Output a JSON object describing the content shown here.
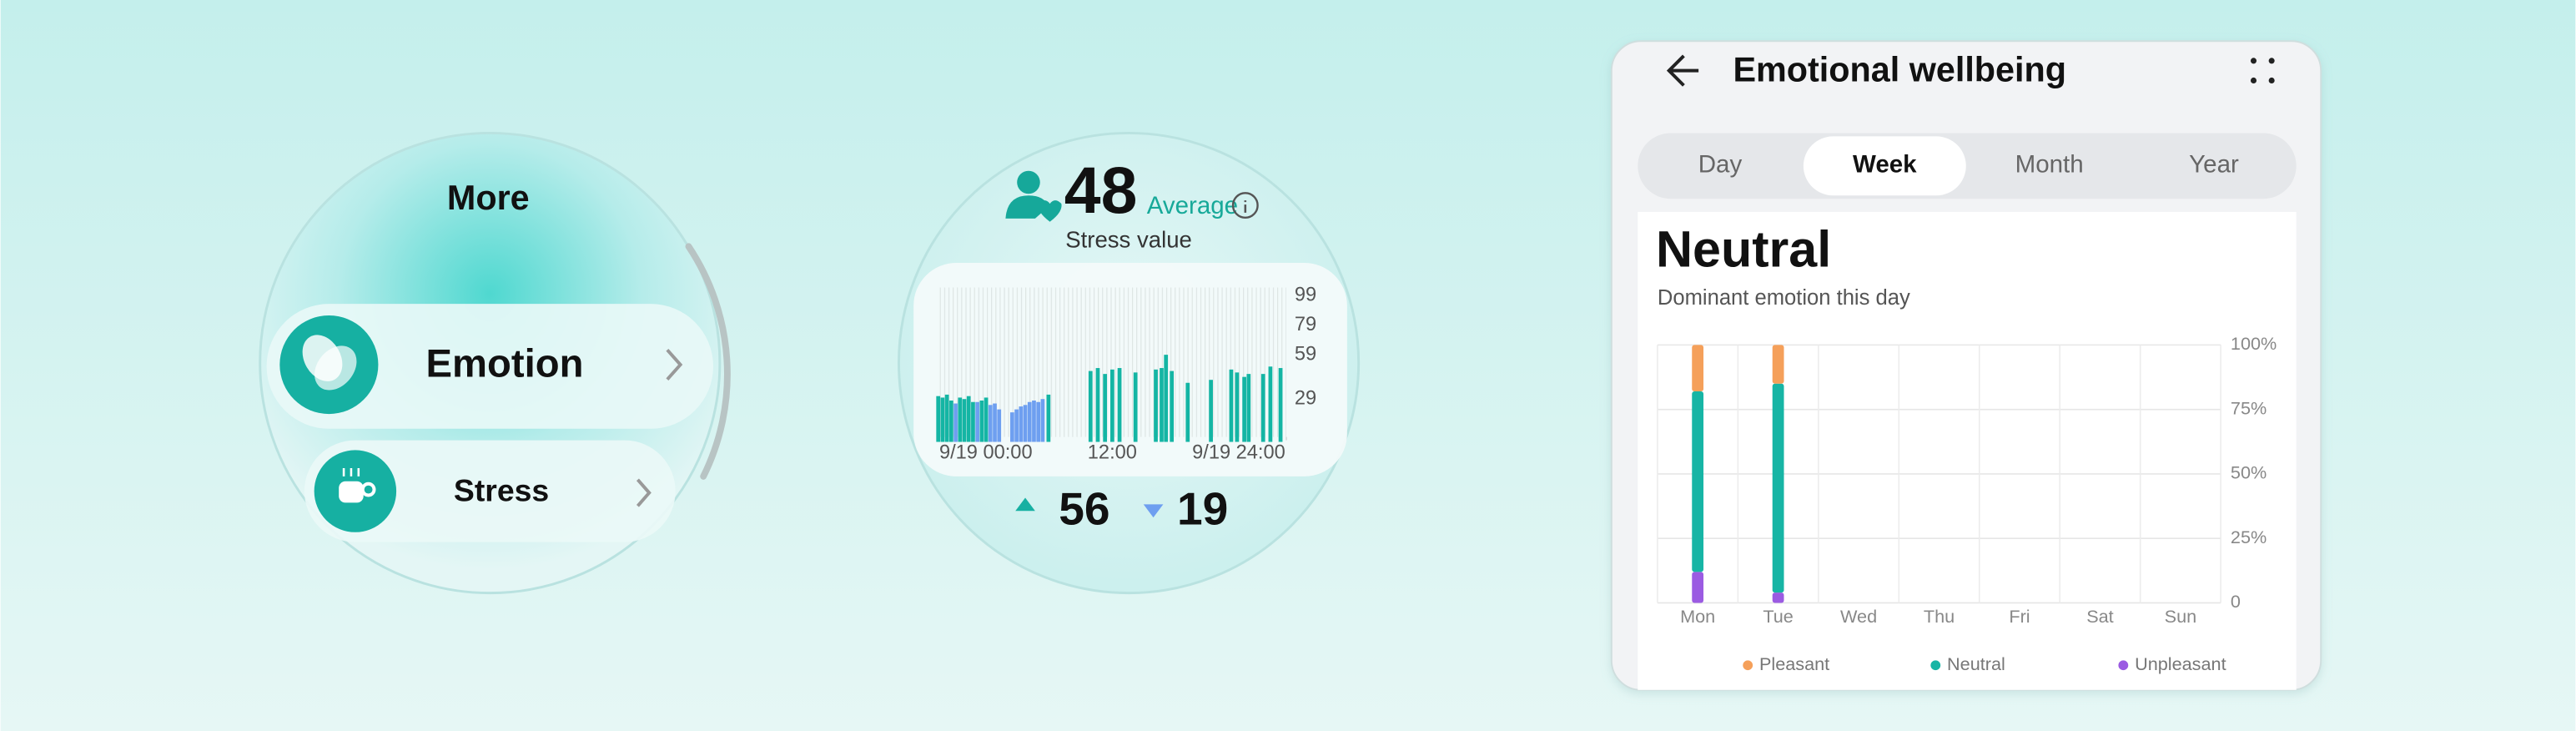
{
  "watch_menu": {
    "title": "More",
    "items": [
      "Emotion",
      "Stress"
    ]
  },
  "stress_watch": {
    "value": 48,
    "value_label": "Average",
    "caption": "Stress value",
    "max": 56,
    "min": 19
  },
  "phone": {
    "title": "Emotional wellbeing",
    "tabs": [
      "Day",
      "Week",
      "Month",
      "Year"
    ],
    "selected_tab": "Week",
    "heading": "Neutral",
    "subheading": "Dominant emotion this day"
  },
  "chart_data": [
    {
      "type": "bar",
      "series": [
        {
          "color": "#14b5a4",
          "x": [
            0,
            0.3,
            0.6,
            0.9,
            1.5,
            1.8,
            2.1,
            2.4,
            3.0,
            3.3,
            7.6,
            10.5,
            11,
            11.5,
            12,
            12.5,
            13.6,
            15,
            15.4,
            15.7,
            16.1,
            17.2,
            18.8,
            20.2,
            20.6,
            21.1,
            21.4,
            22.4,
            22.9,
            23.6
          ],
          "values": [
            31,
            30,
            32,
            28,
            30,
            29,
            31,
            27,
            28,
            30,
            32,
            48,
            50,
            46,
            49,
            50,
            47,
            49,
            50,
            59,
            48,
            40,
            42,
            49,
            47,
            44,
            46,
            46,
            51,
            50
          ]
        },
        {
          "color": "#6e9ff0",
          "x": [
            1.2,
            2.7,
            3.6,
            3.9,
            4.2,
            5.1,
            5.4,
            5.7,
            6.0,
            6.3,
            6.6,
            6.9,
            7.2
          ],
          "values": [
            26,
            27,
            25,
            26,
            22,
            20,
            22,
            24,
            25,
            27,
            28,
            27,
            29
          ]
        }
      ],
      "xlim": [
        0,
        24
      ],
      "xticks": [
        {
          "value": 0,
          "label": "9/19 00:00"
        },
        {
          "value": 12,
          "label": "12:00"
        },
        {
          "value": 24,
          "label": "9/19 24:00"
        }
      ],
      "ylim": [
        0,
        99
      ],
      "yticks": [
        29,
        59,
        79,
        99
      ],
      "grid": false
    },
    {
      "type": "stacked_bar",
      "categories": [
        "Mon",
        "Tue",
        "Wed",
        "Thu",
        "Fri",
        "Sat",
        "Sun"
      ],
      "series": [
        {
          "name": "Pleasant",
          "color": "#f5a05a",
          "values": [
            18,
            15,
            null,
            null,
            null,
            null,
            null
          ]
        },
        {
          "name": "Neutral",
          "color": "#17b5a5",
          "values": [
            70,
            81,
            null,
            null,
            null,
            null,
            null
          ]
        },
        {
          "name": "Unpleasant",
          "color": "#9b5be2",
          "values": [
            12,
            4,
            null,
            null,
            null,
            null,
            null
          ]
        }
      ],
      "ylim": [
        0,
        100
      ],
      "yticks": [
        0,
        {
          "value": 25,
          "label": "25%"
        },
        {
          "value": 50,
          "label": "50%"
        },
        {
          "value": 75,
          "label": "75%"
        },
        {
          "value": 100,
          "label": "100%"
        }
      ],
      "grid": true,
      "legend": "bottom"
    }
  ]
}
